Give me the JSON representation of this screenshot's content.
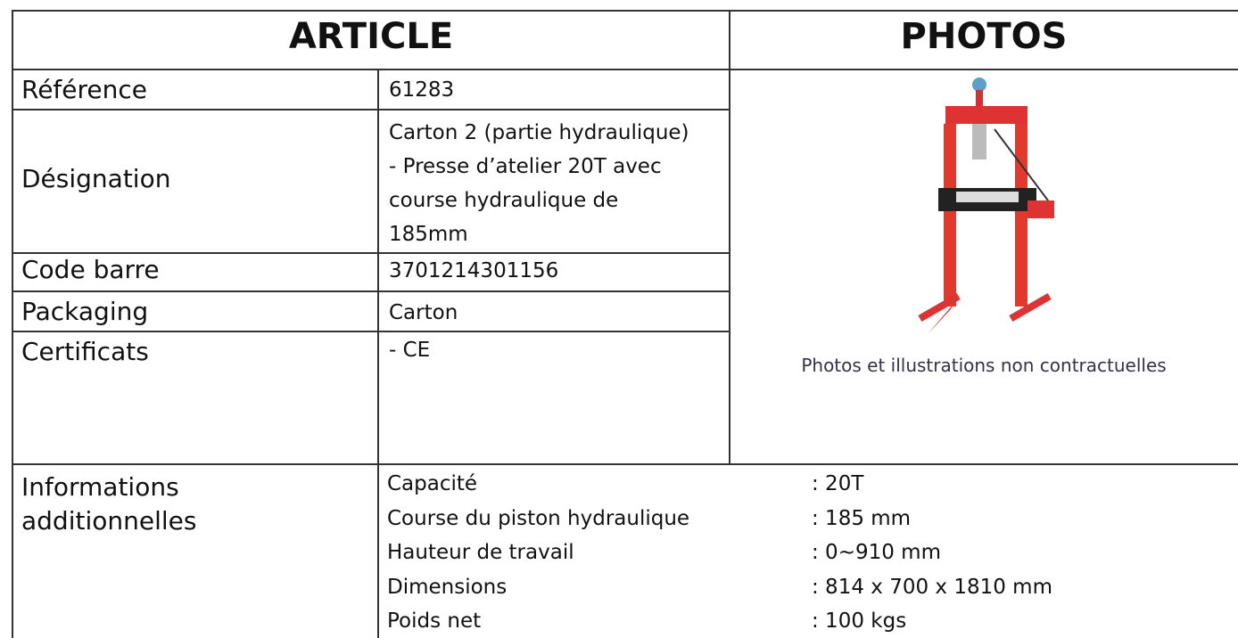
{
  "header": {
    "article": "ARTICLE",
    "photos": "PHOTOS"
  },
  "rows": [
    {
      "label": "Référence",
      "value": "61283"
    },
    {
      "label": "Désignation",
      "value": "Carton 2 (partie hydraulique) - Presse d’atelier 20T avec course hydraulique de 185mm"
    },
    {
      "label": "Code barre",
      "value": "3701214301156"
    },
    {
      "label": "Packaging",
      "value": "Carton"
    },
    {
      "label": "Certificats",
      "value": "- CE"
    }
  ],
  "photo": {
    "caption": "Photos et illustrations non contractuelles"
  },
  "additional": {
    "label": "Informations additionnelles",
    "specs": [
      {
        "name": "Capacité",
        "value": ": 20T"
      },
      {
        "name": "Course du piston hydraulique",
        "value": ": 185 mm"
      },
      {
        "name": "Hauteur de travail",
        "value": ": 0~910 mm"
      },
      {
        "name": "Dimensions",
        "value": ": 814 x 700 x 1810 mm"
      },
      {
        "name": "Poids net",
        "value": ": 100 kgs"
      }
    ]
  }
}
